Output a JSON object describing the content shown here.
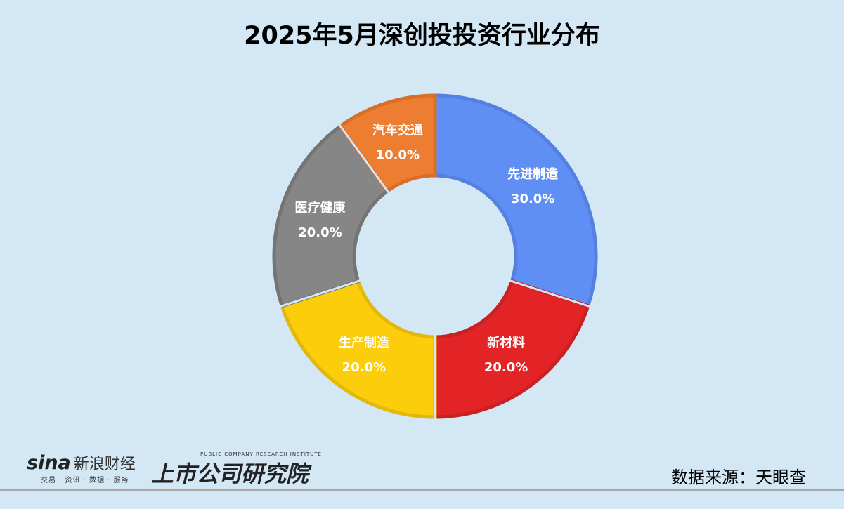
{
  "chart_data": {
    "type": "pie",
    "donut": true,
    "title": "2025年5月深创投投资行业分布",
    "slices": [
      {
        "label": "先进制造",
        "value": 30.0,
        "display": "30.0%",
        "color": "#5f8ff5",
        "border": "#5580e0"
      },
      {
        "label": "新材料",
        "value": 20.0,
        "display": "20.0%",
        "color": "#e32427",
        "border": "#c92024"
      },
      {
        "label": "生产制造",
        "value": 20.0,
        "display": "20.0%",
        "color": "#fbcd0a",
        "border": "#e2b80a"
      },
      {
        "label": "医疗健康",
        "value": 20.0,
        "display": "20.0%",
        "color": "#868686",
        "border": "#747474"
      },
      {
        "label": "汽车交通",
        "value": 10.0,
        "display": "10.0%",
        "color": "#ed7d31",
        "border": "#d86e28"
      }
    ]
  },
  "footer": {
    "source": "数据来源：天眼查",
    "logo_sina": "sina",
    "logo_sina_cn": "新浪财经",
    "logo_sina_sub": "交易 · 资讯 · 数据 · 服务",
    "logo_inst_en": "PUBLIC COMPANY RESEARCH INSTITUTE",
    "logo_inst_cn": "上市公司研究院"
  }
}
